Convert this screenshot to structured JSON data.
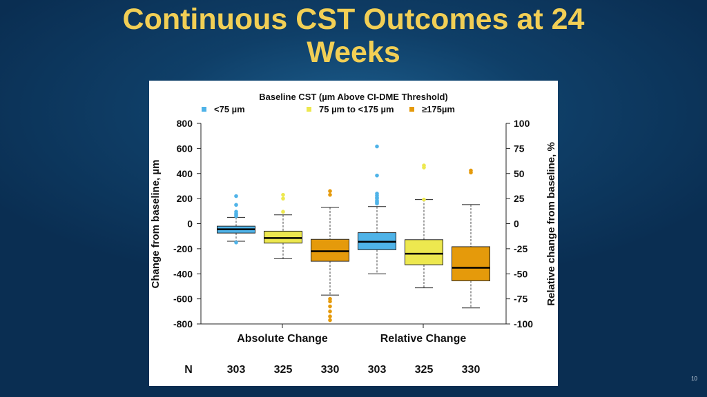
{
  "slide": {
    "title_line1": "Continuous CST Outcomes at 24",
    "title_line2": "Weeks",
    "page_number": "10"
  },
  "colors": {
    "title": "#f2cf55",
    "lt75": "#4fb3e8",
    "mid": "#ede84f",
    "ge175": "#e59a0b"
  },
  "chart_data": {
    "type": "boxplot",
    "legend_title": "Baseline CST (µm Above CI-DME Threshold)",
    "legend": [
      {
        "label": "<75 µm",
        "color": "#4fb3e8"
      },
      {
        "label": "75 µm to <175 µm",
        "color": "#ede84f"
      },
      {
        "label": "≥175µm",
        "color": "#e59a0b"
      }
    ],
    "left_axis": {
      "label": "Change from baseline, µm",
      "range": [
        -800,
        800
      ],
      "ticks": [
        "800",
        "600",
        "400",
        "200",
        "0",
        "-200",
        "-400",
        "-600",
        "-800"
      ]
    },
    "right_axis": {
      "label": "Relative change from baseline, %",
      "range": [
        -100,
        100
      ],
      "ticks": [
        "100",
        "75",
        "50",
        "25",
        "0",
        "-25",
        "-50",
        "-75",
        "-100"
      ]
    },
    "groups": [
      {
        "label": "Absolute Change",
        "axis": "left"
      },
      {
        "label": "Relative Change",
        "axis": "right"
      }
    ],
    "n_label": "N",
    "boxes": [
      {
        "group": 0,
        "color": "#4fb3e8",
        "n": "303",
        "whisker_low": -140,
        "q1": -75,
        "median": -45,
        "q3": -20,
        "whisker_high": 50,
        "outliers": [
          220,
          150,
          95,
          80,
          70,
          60,
          -150
        ]
      },
      {
        "group": 0,
        "color": "#ede84f",
        "n": "325",
        "whisker_low": -280,
        "q1": -155,
        "median": -115,
        "q3": -60,
        "whisker_high": 70,
        "outliers": [
          230,
          200,
          95
        ]
      },
      {
        "group": 0,
        "color": "#e59a0b",
        "n": "330",
        "whisker_low": -570,
        "q1": -300,
        "median": -220,
        "q3": -125,
        "whisker_high": 130,
        "outliers": [
          260,
          230,
          -600,
          -620,
          -660,
          -700,
          -740,
          -770
        ]
      },
      {
        "group": 1,
        "color": "#4fb3e8",
        "n": "303",
        "whisker_low": -50,
        "q1": -26,
        "median": -18,
        "q3": -9,
        "whisker_high": 17,
        "outliers": [
          77,
          48,
          30,
          28,
          26,
          25,
          23,
          22,
          21,
          20
        ]
      },
      {
        "group": 1,
        "color": "#ede84f",
        "n": "325",
        "whisker_low": -64,
        "q1": -41,
        "median": -30,
        "q3": -16,
        "whisker_high": 24,
        "outliers": [
          58,
          56,
          24
        ]
      },
      {
        "group": 1,
        "color": "#e59a0b",
        "n": "330",
        "whisker_low": -84,
        "q1": -57,
        "median": -44,
        "q3": -23,
        "whisker_high": 19,
        "outliers": [
          53,
          51
        ]
      }
    ]
  }
}
